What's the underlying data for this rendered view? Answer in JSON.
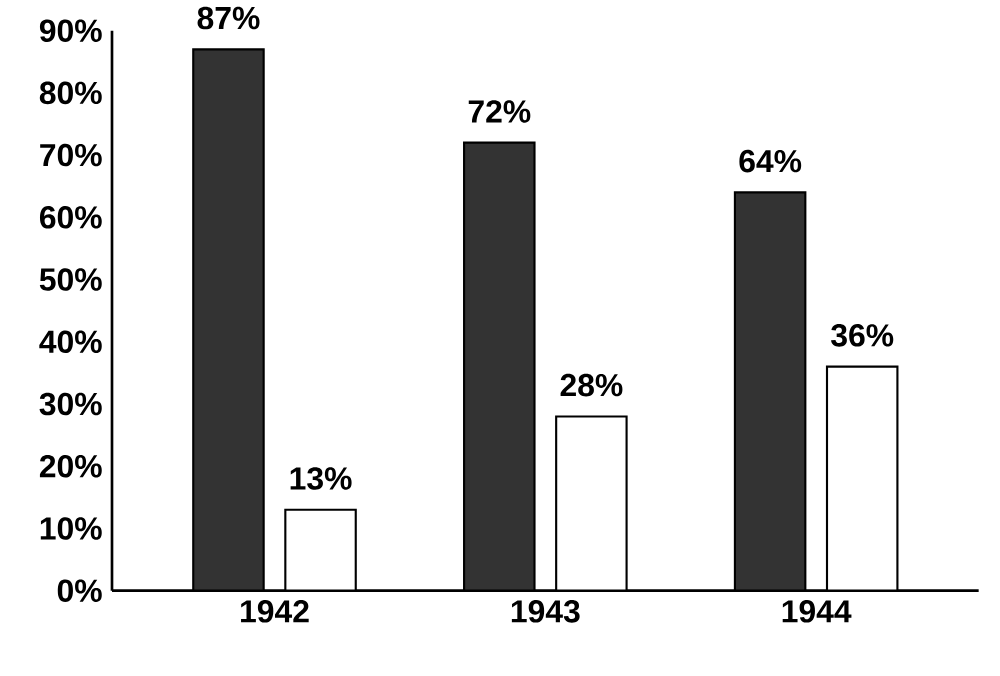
{
  "chart_data": {
    "type": "bar",
    "categories": [
      "1942",
      "1943",
      "1944"
    ],
    "series": [
      {
        "color": "#333333",
        "values": [
          87,
          72,
          64
        ],
        "value_labels": [
          "87%",
          "72%",
          "64%"
        ]
      },
      {
        "color": "#ffffff",
        "values": [
          13,
          28,
          36
        ],
        "value_labels": [
          "13%",
          "28%",
          "36%"
        ]
      }
    ],
    "ylim": [
      0,
      90
    ],
    "yticks": [
      {
        "value": 0,
        "label": "0%"
      },
      {
        "value": 10,
        "label": "10%"
      },
      {
        "value": 20,
        "label": "20%"
      },
      {
        "value": 30,
        "label": "30%"
      },
      {
        "value": 40,
        "label": "40%"
      },
      {
        "value": 50,
        "label": "50%"
      },
      {
        "value": 60,
        "label": "60%"
      },
      {
        "value": 70,
        "label": "70%"
      },
      {
        "value": 80,
        "label": "80%"
      },
      {
        "value": 90,
        "label": "90%"
      }
    ]
  }
}
